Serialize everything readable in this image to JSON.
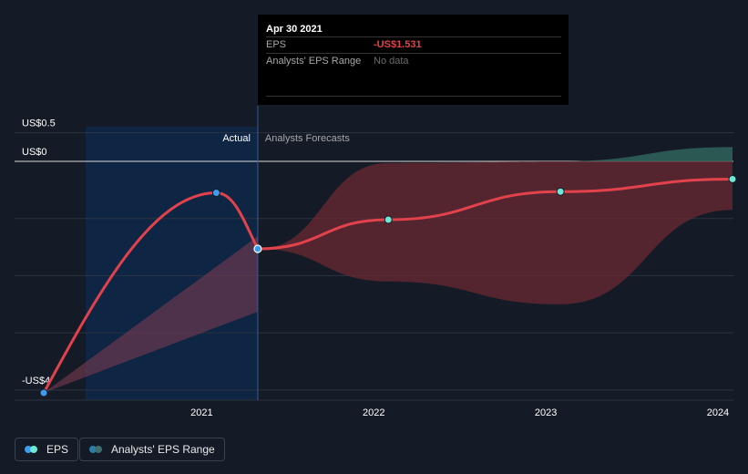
{
  "chart_data": {
    "type": "line",
    "currency_prefix": "US$",
    "y_axis_labels": [
      {
        "label": "US$0.5",
        "value": 0.5
      },
      {
        "label": "US$0",
        "value": 0
      },
      {
        "label": "-US$4",
        "value": -4
      }
    ],
    "x_tick_labels": [
      "2021",
      "2022",
      "2023",
      "2024"
    ],
    "ylim": [
      -4.2,
      0.5
    ],
    "xlim": [
      "2020-02-01",
      "2024-02-01"
    ],
    "grid": true,
    "region_labels": {
      "actual": "Actual",
      "forecast": "Analysts Forecasts"
    },
    "forecast_start": "2021-04-30",
    "series": [
      {
        "name": "EPS",
        "color": "#e2424b",
        "actual_points": [
          {
            "x": "2020-02-01",
            "y": -4.05
          },
          {
            "x": "2021-02-01",
            "y": -0.55
          },
          {
            "x": "2021-04-30",
            "y": -1.531
          }
        ],
        "forecast_points": [
          {
            "x": "2021-04-30",
            "y": -1.531
          },
          {
            "x": "2022-02-01",
            "y": -1.02
          },
          {
            "x": "2023-02-01",
            "y": -0.53
          },
          {
            "x": "2024-02-01",
            "y": -0.31
          }
        ]
      },
      {
        "name": "Analysts' EPS Range",
        "color": "#3f6f6a",
        "range_upper": [
          {
            "x": "2021-04-30",
            "y": -1.531
          },
          {
            "x": "2022-02-01",
            "y": -0.03
          },
          {
            "x": "2023-02-01",
            "y": 0.0
          },
          {
            "x": "2024-02-01",
            "y": 0.25
          }
        ],
        "range_lower": [
          {
            "x": "2021-04-30",
            "y": -1.531
          },
          {
            "x": "2022-02-01",
            "y": -2.1
          },
          {
            "x": "2023-02-01",
            "y": -2.5
          },
          {
            "x": "2024-02-01",
            "y": -0.85
          }
        ]
      }
    ],
    "actual_range_band": {
      "upper": [
        {
          "x": "2020-02-01",
          "y": -4.05
        },
        {
          "x": "2021-04-30",
          "y": -1.31
        }
      ],
      "lower": [
        {
          "x": "2020-02-01",
          "y": -4.05
        },
        {
          "x": "2021-04-30",
          "y": -2.63
        }
      ]
    },
    "colors": {
      "eps_line": "#e2424b",
      "eps_dot_actual": "#3b9cf0",
      "eps_dot_forecast": "#6ee7d4",
      "range_fill_negative": "#6b2a33",
      "range_fill_positive": "#2f5f5a",
      "actual_shade": "#0f2a4f"
    }
  },
  "tooltip": {
    "date": "Apr 30 2021",
    "eps_label": "EPS",
    "eps_value": "-US$1.531",
    "range_label": "Analysts' EPS Range",
    "range_value": "No data"
  },
  "legend": {
    "items": [
      {
        "label": "EPS",
        "colors": [
          "#3b9cf0",
          "#6ee7d4"
        ]
      },
      {
        "label": "Analysts' EPS Range",
        "colors": [
          "#2a7ea8",
          "#3f6f6a"
        ]
      }
    ]
  }
}
